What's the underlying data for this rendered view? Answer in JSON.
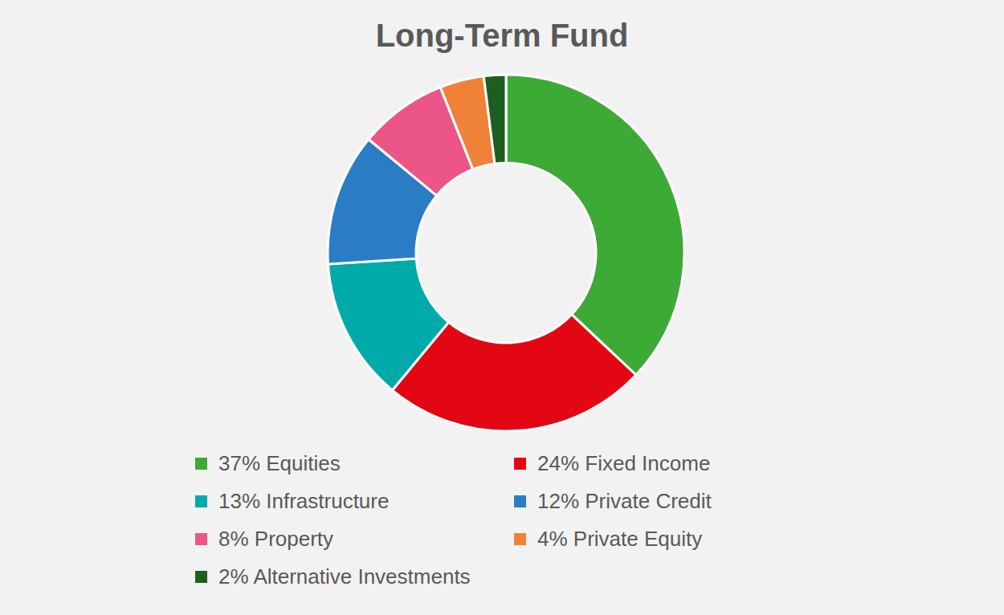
{
  "chart_data": {
    "type": "donut",
    "title": "Long-Term Fund",
    "categories": [
      "Equities",
      "Fixed Income",
      "Infrastructure",
      "Private Credit",
      "Property",
      "Private Equity",
      "Alternative Investments"
    ],
    "values": [
      37,
      24,
      13,
      12,
      8,
      4,
      2
    ],
    "value_labels": [
      "37%",
      "24%",
      "13%",
      "12%",
      "8%",
      "4%",
      "2%"
    ],
    "colors": [
      "#3daa35",
      "#e30613",
      "#00aaa8",
      "#2a7dc4",
      "#eb5587",
      "#f08138",
      "#1e5e20"
    ],
    "legend": "bottom"
  }
}
